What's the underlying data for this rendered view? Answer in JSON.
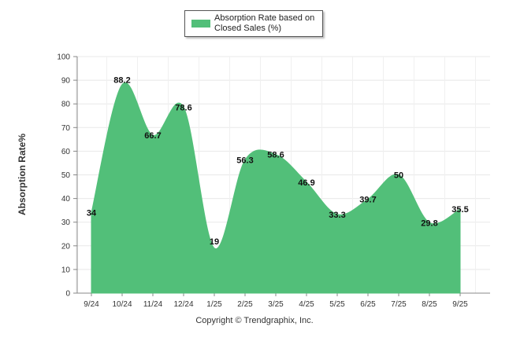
{
  "chart_data": {
    "type": "area",
    "title": "",
    "legend": [
      "Absorption Rate based on Closed Sales (%)"
    ],
    "legend_position": "top-center",
    "xlabel": "",
    "ylabel": "Absorption Rate%",
    "ylim": [
      0,
      100
    ],
    "yticks": [
      0,
      10,
      20,
      30,
      40,
      50,
      60,
      70,
      80,
      90,
      100
    ],
    "categories": [
      "9/24",
      "10/24",
      "11/24",
      "12/24",
      "1/25",
      "2/25",
      "3/25",
      "4/25",
      "5/25",
      "6/25",
      "7/25",
      "8/25",
      "9/25"
    ],
    "series": [
      {
        "name": "Absorption Rate based on Closed Sales (%)",
        "values": [
          34,
          88.2,
          66.7,
          78.6,
          19,
          56.3,
          58.6,
          46.9,
          33.3,
          39.7,
          50,
          29.8,
          35.5
        ],
        "labels": [
          "34",
          "88.2",
          "66.7",
          "78.6",
          "19",
          "56.3",
          "58.6",
          "46.9",
          "33.3",
          "39.7",
          "50",
          "29.8",
          "35.5"
        ],
        "color": "#52bf79"
      }
    ],
    "grid": true,
    "footer": "Copyright © Trendgraphix, Inc."
  }
}
